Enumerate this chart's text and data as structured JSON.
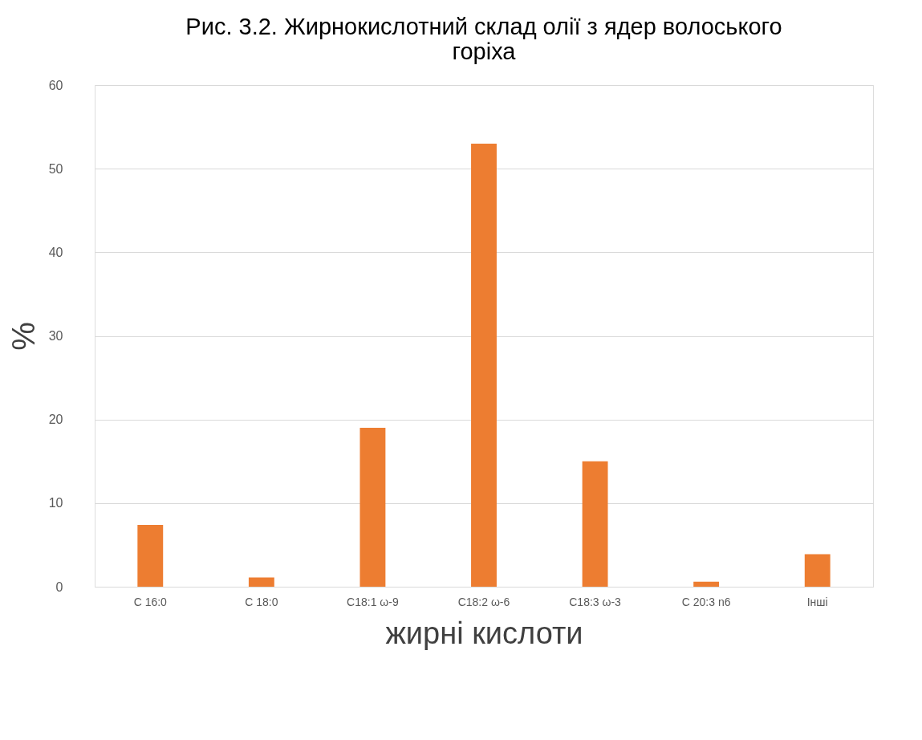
{
  "chart_data": {
    "type": "bar",
    "title": "Рис. 3.2. Жирнокислотний склад олії з ядер волоського горіха",
    "xlabel": "жирні кислоти",
    "ylabel": "%",
    "categories": [
      "C 16:0",
      "C 18:0",
      "C18:1 ω-9",
      "C18:2 ω-6",
      "C18:3 ω-3",
      "C 20:3 n6",
      "Інші"
    ],
    "values": [
      7.4,
      1.1,
      19,
      53,
      15,
      0.6,
      3.9
    ],
    "color": "#ed7d31",
    "ylim": [
      0,
      60
    ],
    "yticks": [
      0,
      10,
      20,
      30,
      40,
      50,
      60
    ],
    "grid": "y"
  }
}
